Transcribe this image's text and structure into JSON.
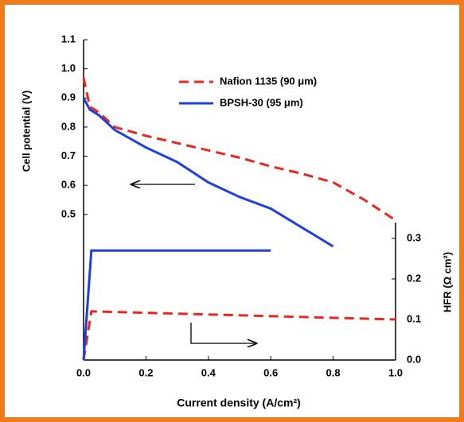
{
  "chart_data": {
    "type": "line",
    "xlabel": "Current density (A/cm²)",
    "ylabel": "Cell potential (V)",
    "y2label": "HFR (Ω cm²)",
    "xlim": [
      0,
      1.0
    ],
    "xticks": [
      {
        "value": 0,
        "label": "0.0"
      },
      0.2,
      0.4,
      0.6,
      0.8,
      {
        "value": 1,
        "label": "1.0"
      }
    ],
    "ylim": [
      0,
      1.1
    ],
    "yticks": [
      0.5,
      0.6,
      0.7,
      0.8,
      0.9,
      {
        "value": 1,
        "label": "1.0"
      },
      1.1
    ],
    "y2lim": [
      0,
      0.79
    ],
    "y2ticks": [
      {
        "value": 0,
        "label": "0.0"
      },
      0.1,
      0.2,
      0.3
    ],
    "series": [
      {
        "name": "Nafion 1135 (90 μm)",
        "color": "#e8271f",
        "style": "dashed",
        "x": [
          0,
          0.02,
          0.05,
          0.1,
          0.2,
          0.3,
          0.4,
          0.5,
          0.6,
          0.7,
          0.8,
          0.9,
          1.0
        ],
        "values": [
          0.97,
          0.87,
          0.85,
          0.8,
          0.77,
          0.745,
          0.72,
          0.695,
          0.665,
          0.64,
          0.61,
          0.55,
          0.48
        ]
      },
      {
        "name": "BPSH-30 (95 μm)",
        "color": "#1f3fe0",
        "style": "solid",
        "x": [
          0,
          0.02,
          0.05,
          0.1,
          0.2,
          0.3,
          0.4,
          0.5,
          0.6,
          0.7,
          0.8
        ],
        "values": [
          0.9,
          0.86,
          0.84,
          0.79,
          0.73,
          0.68,
          0.61,
          0.56,
          0.52,
          0.455,
          0.39
        ]
      },
      {
        "color": "#e8271f",
        "style": "dashed",
        "axis": "y2",
        "x": [
          0,
          0.025,
          1.0
        ],
        "values": [
          0,
          0.12,
          0.1
        ]
      },
      {
        "color": "#1f3fe0",
        "style": "solid",
        "axis": "y2",
        "x": [
          0,
          0.025,
          0.6
        ],
        "values": [
          0,
          0.27,
          0.27
        ]
      }
    ]
  }
}
